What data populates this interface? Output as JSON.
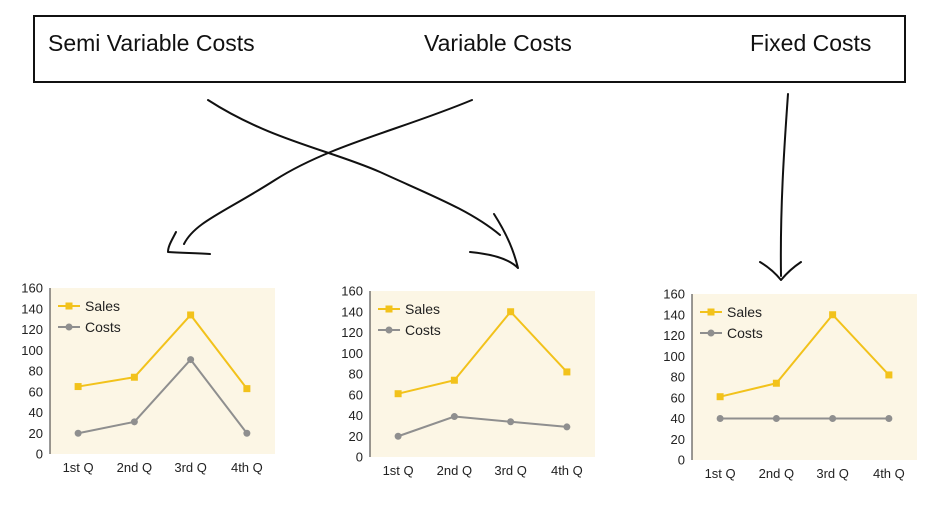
{
  "labels": {
    "semi_variable": "Semi Variable Costs",
    "variable": "Variable Costs",
    "fixed": "Fixed Costs"
  },
  "colors": {
    "sales": "#f2c21b",
    "costs": "#8f8f8f",
    "plot_bg": "#fcf6e5",
    "ink": "#111111"
  },
  "chart_data": [
    {
      "type": "line",
      "title": "",
      "categories": [
        "1st Q",
        "2nd Q",
        "3rd Q",
        "4th Q"
      ],
      "ylim": [
        0,
        160
      ],
      "yticks": [
        "0",
        "20",
        "40",
        "60",
        "80",
        "100",
        "120",
        "140",
        "160"
      ],
      "legend": "top-left",
      "series": [
        {
          "name": "Sales",
          "values": [
            65,
            74,
            134,
            63
          ]
        },
        {
          "name": "Costs",
          "values": [
            20,
            31,
            91,
            20
          ]
        }
      ]
    },
    {
      "type": "line",
      "title": "",
      "categories": [
        "1st Q",
        "2nd Q",
        "3rd Q",
        "4th Q"
      ],
      "ylim": [
        0,
        160
      ],
      "yticks": [
        "0",
        "20",
        "40",
        "60",
        "80",
        "100",
        "120",
        "140",
        "160"
      ],
      "legend": "top-left",
      "series": [
        {
          "name": "Sales",
          "values": [
            61,
            74,
            140,
            82
          ]
        },
        {
          "name": "Costs",
          "values": [
            20,
            39,
            34,
            29
          ]
        }
      ]
    },
    {
      "type": "line",
      "title": "",
      "categories": [
        "1st Q",
        "2nd Q",
        "3rd Q",
        "4th Q"
      ],
      "ylim": [
        0,
        160
      ],
      "yticks": [
        "0",
        "20",
        "40",
        "60",
        "80",
        "100",
        "120",
        "140",
        "160"
      ],
      "legend": "top-left",
      "series": [
        {
          "name": "Sales",
          "values": [
            61,
            74,
            140,
            82
          ]
        },
        {
          "name": "Costs",
          "values": [
            40,
            40,
            40,
            40
          ]
        }
      ]
    }
  ]
}
